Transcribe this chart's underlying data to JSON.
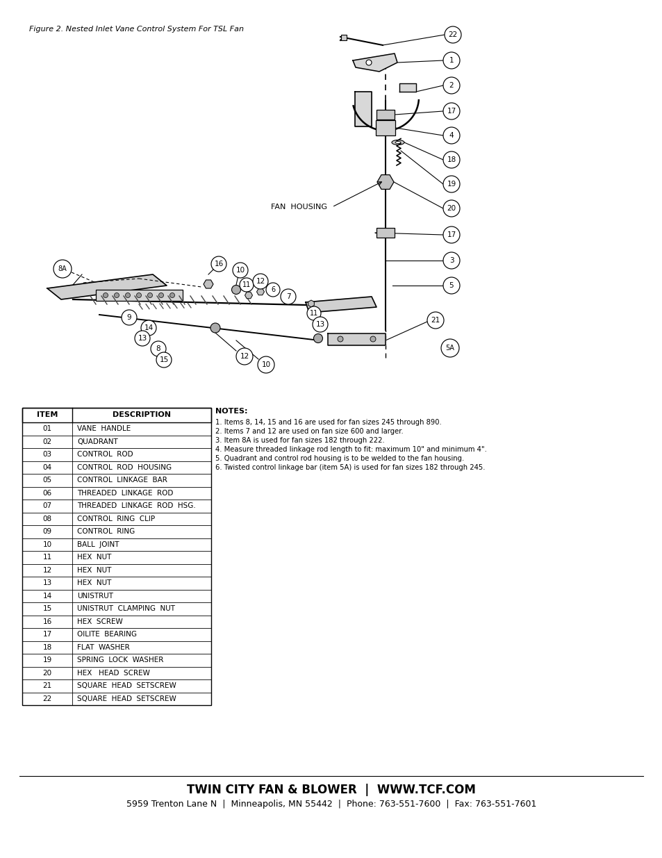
{
  "figure_caption": "Figure 2. Nested Inlet Vane Control System For TSL Fan",
  "table_headers": [
    "ITEM",
    "DESCRIPTION"
  ],
  "table_rows": [
    [
      "01",
      "VANE  HANDLE"
    ],
    [
      "02",
      "QUADRANT"
    ],
    [
      "03",
      "CONTROL  ROD"
    ],
    [
      "04",
      "CONTROL  ROD  HOUSING"
    ],
    [
      "05",
      "CONTROL  LINKAGE  BAR"
    ],
    [
      "06",
      "THREADED  LINKAGE  ROD"
    ],
    [
      "07",
      "THREADED  LINKAGE  ROD  HSG."
    ],
    [
      "08",
      "CONTROL  RING  CLIP"
    ],
    [
      "09",
      "CONTROL  RING"
    ],
    [
      "10",
      "BALL  JOINT"
    ],
    [
      "11",
      "HEX  NUT"
    ],
    [
      "12",
      "HEX  NUT"
    ],
    [
      "13",
      "HEX  NUT"
    ],
    [
      "14",
      "UNISTRUT"
    ],
    [
      "15",
      "UNISTRUT  CLAMPING  NUT"
    ],
    [
      "16",
      "HEX  SCREW"
    ],
    [
      "17",
      "OILITE  BEARING"
    ],
    [
      "18",
      "FLAT  WASHER"
    ],
    [
      "19",
      "SPRING  LOCK  WASHER"
    ],
    [
      "20",
      "HEX   HEAD  SCREW"
    ],
    [
      "21",
      "SQUARE  HEAD  SETSCREW"
    ],
    [
      "22",
      "SQUARE  HEAD  SETSCREW"
    ]
  ],
  "notes_title": "NOTES:",
  "notes": [
    "1. Items 8, 14, 15 and 16 are used for fan sizes 245 through 890.",
    "2. Items 7 and 12 are used on fan size 600 and larger.",
    "3. Item 8A is used for fan sizes 182 through 222.",
    "4. Measure threaded linkage rod length to fit: maximum 10\" and minimum 4\".",
    "5. Quadrant and control rod housing is to be welded to the fan housing.",
    "6. Twisted control linkage bar (item 5A) is used for fan sizes 182 through 245."
  ],
  "company_name": "TWIN CITY FAN & BLOWER  |  WWW.TCF.COM",
  "company_address": "5959 Trenton Lane N  |  Minneapolis, MN 55442  |  Phone: 763-551-7600  |  Fax: 763-551-7601",
  "fan_housing_label": "FAN  HOUSING",
  "background_color": "#ffffff",
  "text_color": "#000000"
}
